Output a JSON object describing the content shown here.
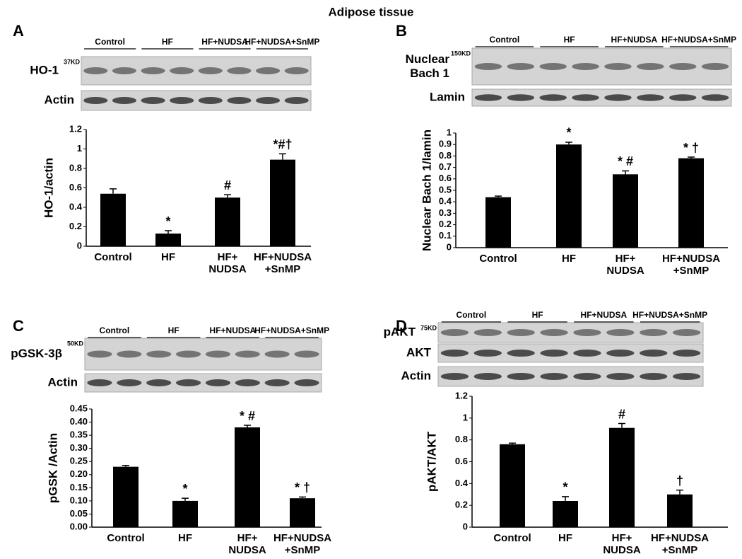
{
  "title": "Adipose tissue",
  "chart_data": [
    {
      "type": "bar",
      "panel": "A",
      "blot": {
        "groups": [
          "Control",
          "HF",
          "HF+NUDSA",
          "HF+NUDSA+SnMP"
        ],
        "rows": [
          {
            "label": "HO-1",
            "marker": "37KD"
          },
          {
            "label": "Actin"
          }
        ]
      },
      "ylabel": "HO-1/actin",
      "categories": [
        "Control",
        "HF",
        "HF+\nNUDSA",
        "HF+NUDSA\n+SnMP"
      ],
      "values": [
        0.54,
        0.13,
        0.5,
        0.89
      ],
      "errors": [
        0.05,
        0.03,
        0.03,
        0.06
      ],
      "annotations": [
        null,
        "*",
        "#",
        "*#†"
      ],
      "color": "#000000",
      "ylim": [
        0,
        1.2
      ],
      "yticks": [
        0,
        0.2,
        0.4,
        0.6,
        0.8,
        1,
        1.2
      ]
    },
    {
      "type": "bar",
      "panel": "B",
      "blot": {
        "groups": [
          "Control",
          "HF",
          "HF+NUDSA",
          "HF+NUDSA+SnMP"
        ],
        "rows": [
          {
            "label": "Nuclear\nBach 1",
            "marker": "150KD"
          },
          {
            "label": "Lamin"
          }
        ]
      },
      "ylabel": "Nuclear Bach 1/lamin",
      "categories": [
        "Control",
        "HF",
        "HF+\nNUDSA",
        "HF+NUDSA\n+SnMP"
      ],
      "values": [
        0.44,
        0.9,
        0.64,
        0.78
      ],
      "errors": [
        0.01,
        0.02,
        0.03,
        0.01
      ],
      "annotations": [
        null,
        "*",
        "* #",
        "* †"
      ],
      "color": "#000000",
      "ylim": [
        0,
        1
      ],
      "yticks": [
        0,
        0.1,
        0.2,
        0.3,
        0.4,
        0.5,
        0.6,
        0.7,
        0.8,
        0.9,
        1
      ]
    },
    {
      "type": "bar",
      "panel": "C",
      "blot": {
        "groups": [
          "Control",
          "HF",
          "HF+NUDSA",
          "HF+NUDSA+SnMP"
        ],
        "rows": [
          {
            "label": "pGSK-3β",
            "marker": "50KD"
          },
          {
            "label": "Actin"
          }
        ]
      },
      "ylabel": "pGSK /Actin",
      "categories": [
        "Control",
        "HF",
        "HF+\nNUDSA",
        "HF+NUDSA\n+SnMP"
      ],
      "values": [
        0.23,
        0.1,
        0.38,
        0.11
      ],
      "errors": [
        0.005,
        0.01,
        0.008,
        0.005
      ],
      "annotations": [
        null,
        "*",
        "* #",
        "* †"
      ],
      "color": "#000000",
      "ylim": [
        0,
        0.45
      ],
      "yticks": [
        {
          "value": 0,
          "label": "0.00"
        },
        {
          "value": 0.05,
          "label": "0.05"
        },
        {
          "value": 0.1,
          "label": "0.10"
        },
        {
          "value": 0.15,
          "label": "0.15"
        },
        {
          "value": 0.2,
          "label": "0.20"
        },
        {
          "value": 0.25,
          "label": "0.25"
        },
        {
          "value": 0.3,
          "label": "0.30"
        },
        {
          "value": 0.35,
          "label": "0.35"
        },
        {
          "value": 0.4,
          "label": "0.40"
        },
        {
          "value": 0.45,
          "label": "0.45"
        }
      ]
    },
    {
      "type": "bar",
      "panel": "D",
      "blot": {
        "groups": [
          "Control",
          "HF",
          "HF+NUDSA",
          "HF+NUDSA+SnMP"
        ],
        "rows": [
          {
            "label": "pAKT",
            "marker": "75KD"
          },
          {
            "label": "AKT"
          },
          {
            "label": "Actin"
          }
        ]
      },
      "ylabel": "pAKT/AKT",
      "categories": [
        "Control",
        "HF",
        "HF+\nNUDSA",
        "HF+NUDSA\n+SnMP"
      ],
      "values": [
        0.76,
        0.24,
        0.91,
        0.3
      ],
      "errors": [
        0.01,
        0.04,
        0.04,
        0.04
      ],
      "annotations": [
        null,
        "*",
        "#",
        "†"
      ],
      "color": "#000000",
      "ylim": [
        0,
        1.2
      ],
      "yticks": [
        0,
        0.2,
        0.4,
        0.6,
        0.8,
        1,
        1.2
      ]
    }
  ]
}
